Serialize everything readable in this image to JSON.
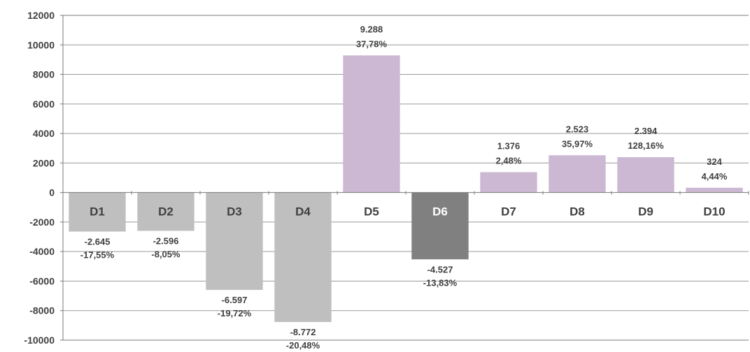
{
  "chart_data": {
    "type": "bar",
    "categories": [
      "D1",
      "D2",
      "D3",
      "D4",
      "D5",
      "D6",
      "D7",
      "D8",
      "D9",
      "D10"
    ],
    "values": [
      -2645,
      -2596,
      -6597,
      -8772,
      9288,
      -4527,
      1376,
      2523,
      2394,
      324
    ],
    "value_labels": [
      "-2.645",
      "-2.596",
      "-6.597",
      "-8.772",
      "9.288",
      "-4.527",
      "1.376",
      "2.523",
      "2.394",
      "324"
    ],
    "percent_labels": [
      "-17,55%",
      "-8,05%",
      "-19,72%",
      "-20,48%",
      "37,78%",
      "-13,83%",
      "2,48%",
      "35,97%",
      "128,16%",
      "4,44%"
    ],
    "ylim": [
      -10000,
      12000
    ],
    "yticks": [
      12000,
      10000,
      8000,
      6000,
      4000,
      2000,
      0,
      -2000,
      -4000,
      -6000,
      -8000,
      -10000
    ],
    "grid": true,
    "colors": {
      "negative": "#bfbfbf",
      "highlight": "#808080",
      "positive": "#ccb8d2",
      "highlight_index": 5
    }
  }
}
